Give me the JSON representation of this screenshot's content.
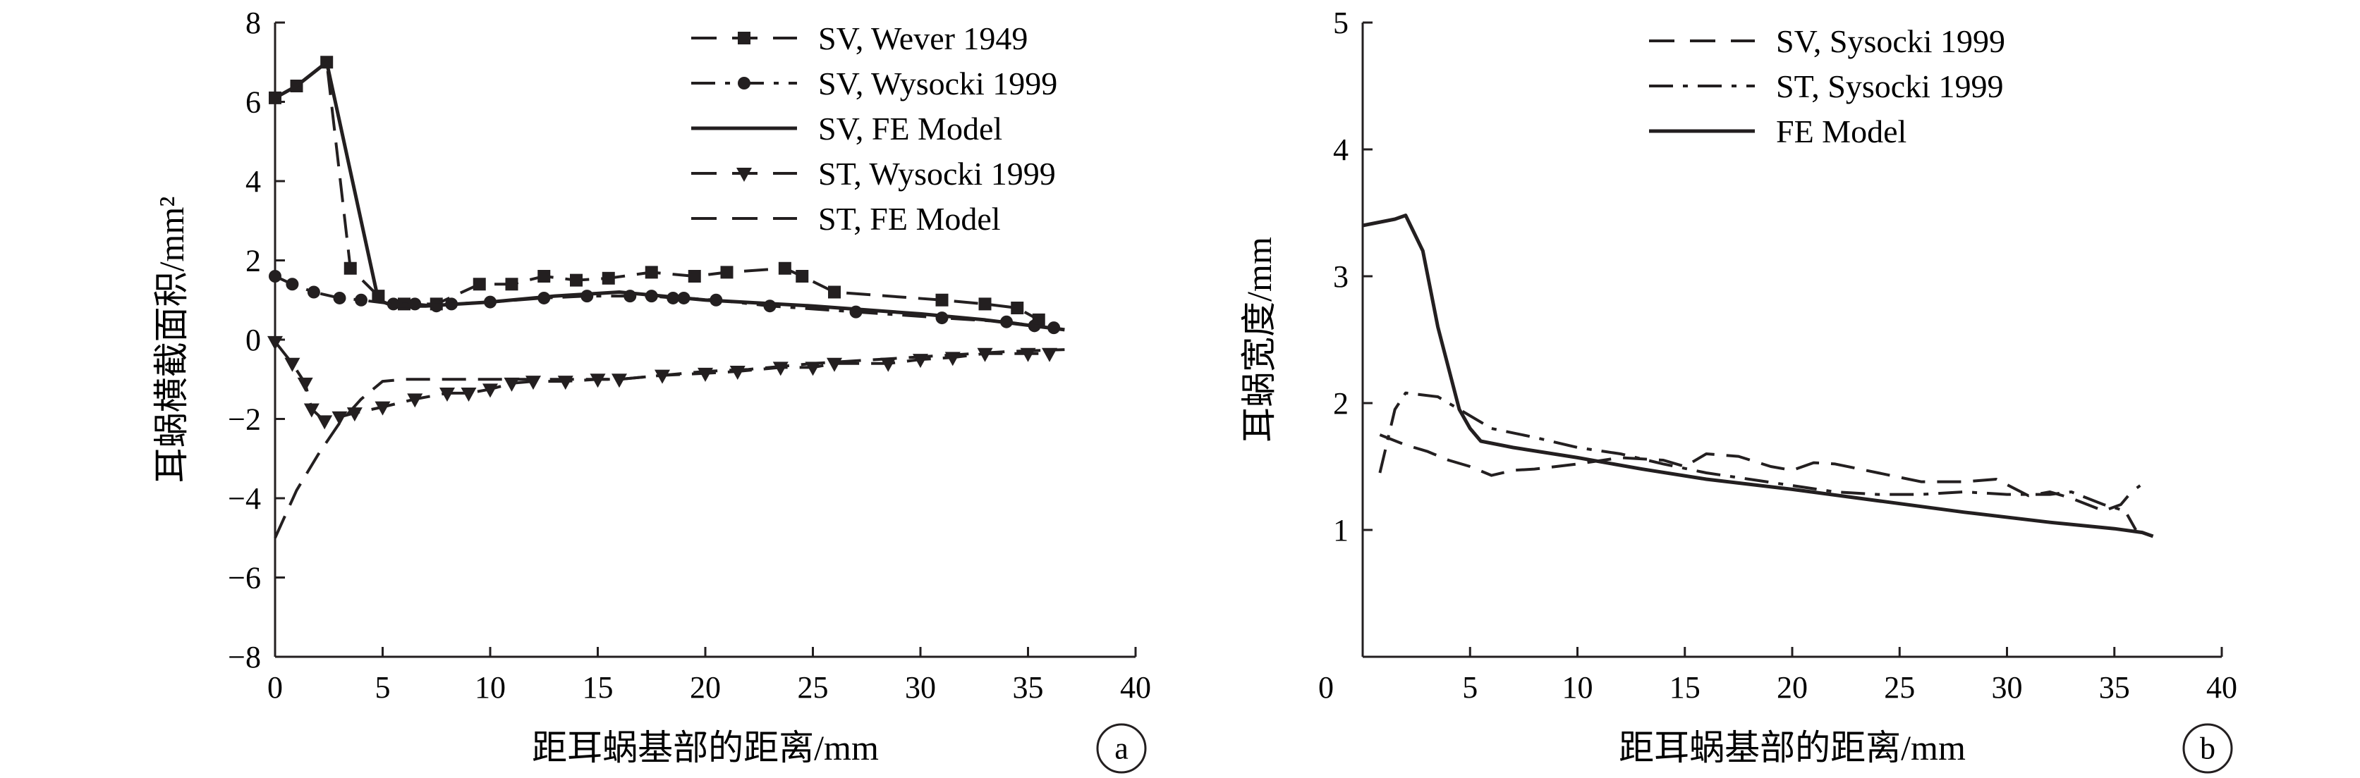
{
  "chart_data": [
    {
      "id": "a",
      "type": "line",
      "panel_label": "a",
      "xlabel": "距耳蜗基部的距离/mm",
      "ylabel": "耳蜗横截面积/mm²",
      "xlim": [
        0,
        40
      ],
      "ylim": [
        -8,
        8
      ],
      "xticks": [
        0,
        5,
        10,
        15,
        20,
        25,
        30,
        35,
        40
      ],
      "yticks": [
        -8,
        -6,
        -4,
        -2,
        0,
        2,
        4,
        6,
        8
      ],
      "ytick_labels": [
        "−8",
        "−6",
        "−4",
        "−2",
        "0",
        "2",
        "4",
        "6",
        "8"
      ],
      "grid": false,
      "legend_position": "top-right",
      "series": [
        {
          "name": "SV, Wever 1949",
          "style": "dashed",
          "marker": "square",
          "x": [
            0,
            1,
            2.4,
            3.5,
            4.8,
            6,
            7.5,
            9.5,
            11,
            12.5,
            14,
            15.5,
            17.5,
            19.5,
            21,
            23.7,
            24.5,
            26,
            31,
            33,
            34.5,
            35.5
          ],
          "y": [
            6.1,
            6.4,
            7.0,
            1.8,
            1.1,
            0.9,
            0.9,
            1.4,
            1.4,
            1.6,
            1.5,
            1.55,
            1.7,
            1.6,
            1.7,
            1.8,
            1.6,
            1.2,
            1.0,
            0.9,
            0.8,
            0.5
          ]
        },
        {
          "name": "SV, Wysocki 1999",
          "style": "dashdot",
          "marker": "circle",
          "x": [
            0,
            0.8,
            1.8,
            3,
            4,
            5.5,
            6.5,
            7.5,
            8.2,
            10,
            12.5,
            14.5,
            16.5,
            17.5,
            18.5,
            19,
            20.5,
            23,
            27,
            31,
            34,
            35.3,
            36.2
          ],
          "y": [
            1.6,
            1.4,
            1.2,
            1.05,
            1.0,
            0.9,
            0.9,
            0.85,
            0.9,
            0.95,
            1.05,
            1.1,
            1.1,
            1.1,
            1.05,
            1.05,
            1.0,
            0.85,
            0.7,
            0.55,
            0.45,
            0.35,
            0.3
          ]
        },
        {
          "name": "SV, FE Model",
          "style": "solid",
          "marker": "none",
          "x": [
            0,
            1,
            2.4,
            4.8,
            5.5,
            7,
            10,
            13,
            16,
            20,
            25,
            30,
            33,
            36.7
          ],
          "y": [
            6.1,
            6.4,
            7.0,
            1.0,
            0.85,
            0.85,
            0.95,
            1.1,
            1.2,
            1.0,
            0.85,
            0.65,
            0.5,
            0.25
          ]
        },
        {
          "name": "ST, Wysocki 1999",
          "style": "dashed",
          "marker": "triangle-down",
          "x": [
            0,
            0.8,
            1.4,
            1.7,
            2.3,
            3,
            3.7,
            5,
            6.5,
            8,
            9,
            10,
            11,
            12,
            13.5,
            15,
            16,
            18,
            20,
            21.5,
            23.5,
            25,
            26,
            28.5,
            30,
            31.5,
            33,
            35,
            36
          ],
          "y": [
            -0.05,
            -0.6,
            -1.1,
            -1.75,
            -2.05,
            -1.95,
            -1.85,
            -1.7,
            -1.5,
            -1.35,
            -1.35,
            -1.25,
            -1.1,
            -1.05,
            -1.05,
            -1.0,
            -1.0,
            -0.9,
            -0.85,
            -0.8,
            -0.7,
            -0.7,
            -0.6,
            -0.6,
            -0.5,
            -0.45,
            -0.35,
            -0.35,
            -0.35
          ]
        },
        {
          "name": "ST, FE Model",
          "style": "dashed",
          "marker": "none",
          "x": [
            0,
            1,
            2,
            3,
            4,
            5,
            6,
            8,
            10,
            12,
            14,
            16,
            18,
            20,
            22,
            25,
            28,
            31,
            34,
            36.7
          ],
          "y": [
            -5.0,
            -3.8,
            -2.9,
            -2.1,
            -1.5,
            -1.05,
            -1.0,
            -1.0,
            -1.0,
            -1.0,
            -1.0,
            -1.0,
            -0.9,
            -0.8,
            -0.75,
            -0.6,
            -0.5,
            -0.4,
            -0.3,
            -0.25
          ]
        }
      ]
    },
    {
      "id": "b",
      "type": "line",
      "panel_label": "b",
      "xlabel": "距耳蜗基部的距离/mm",
      "ylabel": "耳蜗宽度/mm",
      "xlim": [
        0,
        40
      ],
      "ylim": [
        0,
        5
      ],
      "xticks": [
        0,
        5,
        10,
        15,
        20,
        25,
        30,
        35,
        40
      ],
      "yticks": [
        1,
        2,
        3,
        4,
        5
      ],
      "ytick_labels": [
        "1",
        "2",
        "3",
        "4",
        "5"
      ],
      "grid": false,
      "legend_position": "top-left",
      "series": [
        {
          "name": "SV, Sysocki 1999",
          "style": "dashed",
          "marker": "none",
          "x": [
            0.8,
            2,
            3,
            4,
            5,
            6,
            7,
            8,
            10,
            12,
            14,
            15,
            16,
            17.5,
            19,
            20,
            21,
            22,
            24,
            26,
            28,
            29.5,
            31,
            32,
            33,
            34.5,
            35.3,
            35.8,
            36.2
          ],
          "y": [
            1.75,
            1.67,
            1.62,
            1.55,
            1.5,
            1.43,
            1.47,
            1.48,
            1.52,
            1.57,
            1.55,
            1.5,
            1.6,
            1.58,
            1.5,
            1.47,
            1.53,
            1.52,
            1.45,
            1.38,
            1.38,
            1.4,
            1.27,
            1.3,
            1.25,
            1.15,
            1.2,
            1.3,
            1.35
          ]
        },
        {
          "name": "ST, Sysocki 1999",
          "style": "dashdot",
          "marker": "none",
          "x": [
            0.8,
            1.5,
            2,
            3.5,
            5,
            6,
            8,
            10,
            12,
            14,
            16,
            18,
            20,
            22,
            24,
            26,
            28,
            30,
            32,
            33,
            34.5,
            35.5,
            36
          ],
          "y": [
            1.45,
            1.95,
            2.08,
            2.05,
            1.9,
            1.8,
            1.73,
            1.65,
            1.6,
            1.52,
            1.45,
            1.4,
            1.35,
            1.3,
            1.28,
            1.28,
            1.3,
            1.28,
            1.28,
            1.3,
            1.2,
            1.15,
            1.0
          ]
        },
        {
          "name": "FE Model",
          "style": "solid",
          "marker": "none",
          "x": [
            0,
            1.5,
            2,
            2.8,
            3.5,
            4.5,
            5,
            5.5,
            7,
            10,
            13,
            16,
            20,
            24,
            28,
            32,
            35,
            36.3,
            36.8
          ],
          "y": [
            3.4,
            3.45,
            3.48,
            3.2,
            2.6,
            1.95,
            1.8,
            1.7,
            1.65,
            1.57,
            1.48,
            1.4,
            1.32,
            1.23,
            1.14,
            1.06,
            1.01,
            0.98,
            0.95
          ]
        }
      ]
    }
  ]
}
